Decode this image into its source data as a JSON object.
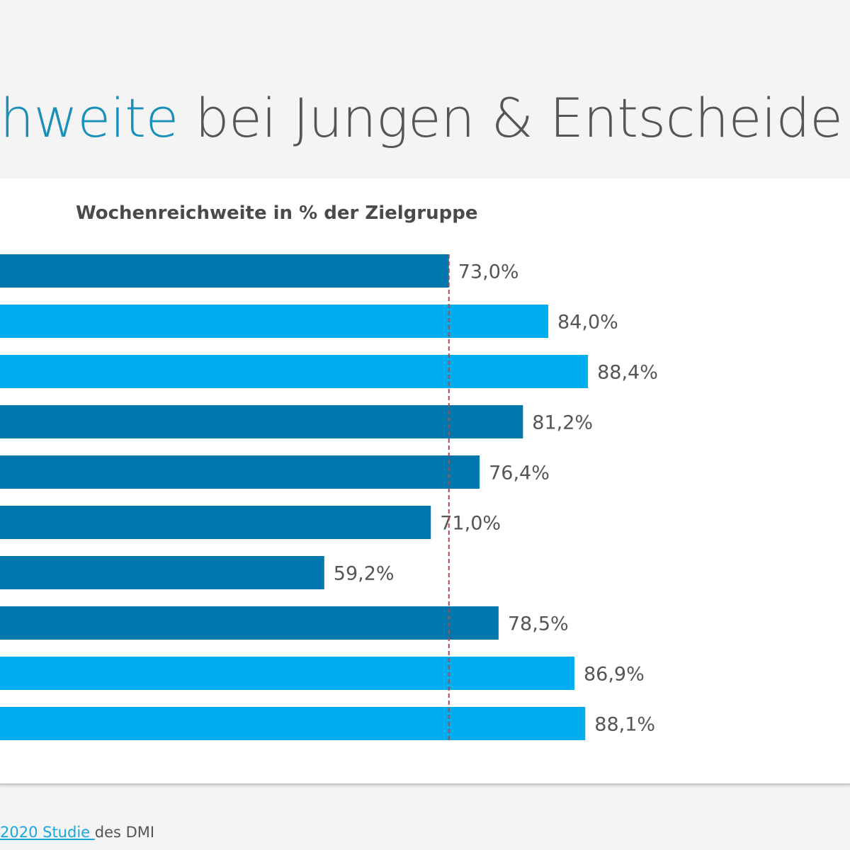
{
  "header": {
    "title_accent": "hweite",
    "title_rest": " bei Jungen & Entscheide"
  },
  "chart_data": {
    "type": "bar",
    "orientation": "horizontal",
    "title": "Wochenreichweite in % der Zielgruppe",
    "values": [
      73.0,
      84.0,
      88.4,
      81.2,
      76.4,
      71.0,
      59.2,
      78.5,
      86.9,
      88.1
    ],
    "value_labels": [
      "73,0%",
      "84,0%",
      "88,4%",
      "81,2%",
      "76,4%",
      "71,0%",
      "59,2%",
      "78,5%",
      "86,9%",
      "88,1%"
    ],
    "bar_colors": [
      "#0078ad",
      "#00aeef",
      "#00aeef",
      "#0078ad",
      "#0078ad",
      "#0078ad",
      "#0078ad",
      "#0078ad",
      "#00aeef",
      "#00aeef"
    ],
    "reference_line": 73.0,
    "reference_line_color": "#b5474b",
    "grid": false
  },
  "footer": {
    "source_link": "2020 Studie ",
    "source_rest": "des DMI"
  }
}
